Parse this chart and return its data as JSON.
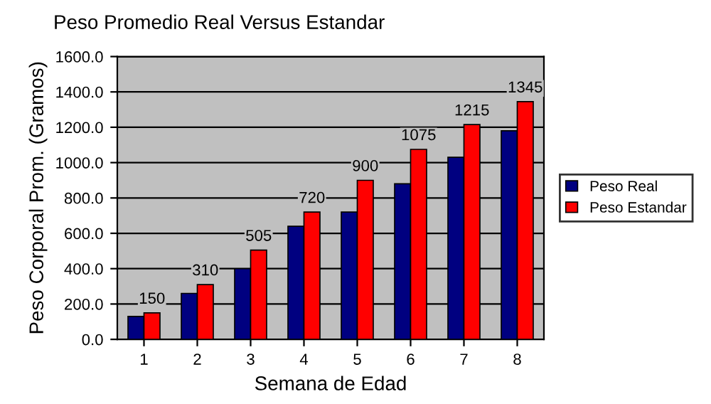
{
  "chart_data": {
    "type": "bar",
    "title": "Peso Promedio Real Versus Estandar",
    "xlabel": "Semana de Edad",
    "ylabel": "Peso Corporal Prom. (Gramos)",
    "categories": [
      "1",
      "2",
      "3",
      "4",
      "5",
      "6",
      "7",
      "8"
    ],
    "series": [
      {
        "name": "Peso Real",
        "color": "#000080",
        "values": [
          130,
          260,
          400,
          640,
          720,
          880,
          1030,
          1180
        ]
      },
      {
        "name": "Peso Estandar",
        "color": "#ff0000",
        "values": [
          150,
          310,
          505,
          720,
          900,
          1075,
          1215,
          1345
        ],
        "value_labels": [
          "150",
          "310",
          "505",
          "720",
          "900",
          "1075",
          "1215",
          "1345"
        ]
      }
    ],
    "ylim": [
      0,
      1600
    ],
    "yticks": [
      {
        "value": 0,
        "label": "0.0"
      },
      {
        "value": 200,
        "label": "200.0"
      },
      {
        "value": 400,
        "label": "400.0"
      },
      {
        "value": 600,
        "label": "600.0"
      },
      {
        "value": 800,
        "label": "800.0"
      },
      {
        "value": 1000,
        "label": "1000.0"
      },
      {
        "value": 1200,
        "label": "1200.0"
      },
      {
        "value": 1400,
        "label": "1400.0"
      },
      {
        "value": 1600,
        "label": "1600.0"
      }
    ],
    "grid": "y",
    "legend": "right"
  }
}
